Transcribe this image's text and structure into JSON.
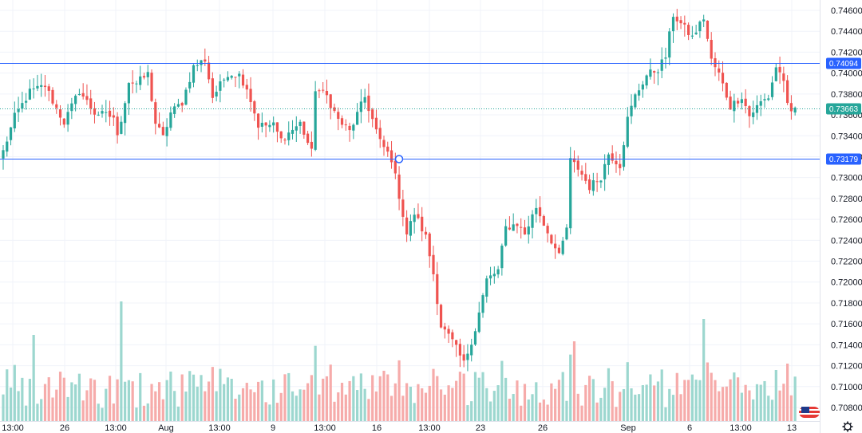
{
  "chart_data": {
    "type": "candlestick",
    "title": "",
    "xlabel": "",
    "ylabel": "",
    "ylim": [
      0.7068,
      0.7476
    ],
    "y_ticks": [
      "0.74600",
      "0.74400",
      "0.74200",
      "0.74000",
      "0.73800",
      "0.73600",
      "0.73400",
      "0.73200",
      "0.73000",
      "0.72800",
      "0.72600",
      "0.72400",
      "0.72200",
      "0.72000",
      "0.71800",
      "0.71600",
      "0.71400",
      "0.71200",
      "0.71000",
      "0.70800"
    ],
    "x_ticks": [
      "13:00",
      "26",
      "13:00",
      "Aug",
      "13:00",
      "9",
      "13:00",
      "16",
      "13:00",
      "23",
      "26",
      "Sep",
      "6",
      "13:00",
      "13"
    ],
    "horizontal_lines": [
      {
        "label": "0.74094",
        "value": 0.74094,
        "color": "#2962ff"
      },
      {
        "label": "0.73179",
        "value": 0.73179,
        "color": "#2962ff"
      }
    ],
    "last_price": {
      "label": "0.73663",
      "value": 0.73663,
      "color": "#26a69a"
    },
    "grid": true,
    "colors": {
      "up": "#26a69a",
      "down": "#ef5350",
      "volume_up": "#9cd7cf",
      "volume_down": "#f6abaa",
      "grid": "#f0f3fa",
      "text": "#131722"
    },
    "anchors": [
      {
        "t": 0,
        "p": 0.7325
      },
      {
        "t": 3,
        "p": 0.7358
      },
      {
        "t": 7,
        "p": 0.7382
      },
      {
        "t": 11,
        "p": 0.7388
      },
      {
        "t": 14,
        "p": 0.7366
      },
      {
        "t": 16,
        "p": 0.7353
      },
      {
        "t": 20,
        "p": 0.7383
      },
      {
        "t": 24,
        "p": 0.7362
      },
      {
        "t": 29,
        "p": 0.7358
      },
      {
        "t": 30,
        "p": 0.7338
      },
      {
        "t": 33,
        "p": 0.7392
      },
      {
        "t": 35,
        "p": 0.739
      },
      {
        "t": 38,
        "p": 0.7399
      },
      {
        "t": 40,
        "p": 0.7352
      },
      {
        "t": 42,
        "p": 0.7338
      },
      {
        "t": 44,
        "p": 0.7362
      },
      {
        "t": 47,
        "p": 0.7372
      },
      {
        "t": 50,
        "p": 0.7406
      },
      {
        "t": 53,
        "p": 0.7413
      },
      {
        "t": 55,
        "p": 0.7377
      },
      {
        "t": 59,
        "p": 0.74
      },
      {
        "t": 62,
        "p": 0.7398
      },
      {
        "t": 64,
        "p": 0.7386
      },
      {
        "t": 67,
        "p": 0.735
      },
      {
        "t": 71,
        "p": 0.735
      },
      {
        "t": 73,
        "p": 0.7336
      },
      {
        "t": 76,
        "p": 0.7346
      },
      {
        "t": 78,
        "p": 0.7352
      },
      {
        "t": 81,
        "p": 0.7324
      },
      {
        "t": 82,
        "p": 0.7385
      },
      {
        "t": 85,
        "p": 0.7378
      },
      {
        "t": 88,
        "p": 0.7355
      },
      {
        "t": 91,
        "p": 0.7344
      },
      {
        "t": 95,
        "p": 0.7377
      },
      {
        "t": 99,
        "p": 0.7334
      },
      {
        "t": 102,
        "p": 0.7318
      },
      {
        "t": 104,
        "p": 0.7283
      },
      {
        "t": 106,
        "p": 0.7246
      },
      {
        "t": 108,
        "p": 0.7266
      },
      {
        "t": 111,
        "p": 0.7243
      },
      {
        "t": 113,
        "p": 0.7208
      },
      {
        "t": 115,
        "p": 0.7158
      },
      {
        "t": 118,
        "p": 0.7143
      },
      {
        "t": 121,
        "p": 0.7122
      },
      {
        "t": 124,
        "p": 0.7155
      },
      {
        "t": 127,
        "p": 0.7202
      },
      {
        "t": 130,
        "p": 0.7211
      },
      {
        "t": 132,
        "p": 0.7252
      },
      {
        "t": 135,
        "p": 0.7256
      },
      {
        "t": 137,
        "p": 0.7246
      },
      {
        "t": 140,
        "p": 0.7272
      },
      {
        "t": 143,
        "p": 0.7248
      },
      {
        "t": 146,
        "p": 0.7224
      },
      {
        "t": 148,
        "p": 0.7252
      },
      {
        "t": 149,
        "p": 0.7316
      },
      {
        "t": 151,
        "p": 0.7309
      },
      {
        "t": 154,
        "p": 0.7291
      },
      {
        "t": 157,
        "p": 0.7301
      },
      {
        "t": 159,
        "p": 0.7323
      },
      {
        "t": 162,
        "p": 0.7312
      },
      {
        "t": 164,
        "p": 0.7356
      },
      {
        "t": 166,
        "p": 0.7378
      },
      {
        "t": 169,
        "p": 0.7398
      },
      {
        "t": 172,
        "p": 0.7404
      },
      {
        "t": 174,
        "p": 0.7416
      },
      {
        "t": 176,
        "p": 0.7456
      },
      {
        "t": 178,
        "p": 0.7447
      },
      {
        "t": 181,
        "p": 0.7434
      },
      {
        "t": 184,
        "p": 0.7453
      },
      {
        "t": 186,
        "p": 0.7412
      },
      {
        "t": 188,
        "p": 0.7399
      },
      {
        "t": 191,
        "p": 0.7368
      },
      {
        "t": 194,
        "p": 0.7378
      },
      {
        "t": 196,
        "p": 0.7359
      },
      {
        "t": 199,
        "p": 0.7372
      },
      {
        "t": 201,
        "p": 0.7377
      },
      {
        "t": 203,
        "p": 0.7406
      },
      {
        "t": 205,
        "p": 0.7394
      },
      {
        "t": 206,
        "p": 0.7368
      },
      {
        "t": 207,
        "p": 0.736
      },
      {
        "t": 208,
        "p": 0.7366
      }
    ]
  }
}
